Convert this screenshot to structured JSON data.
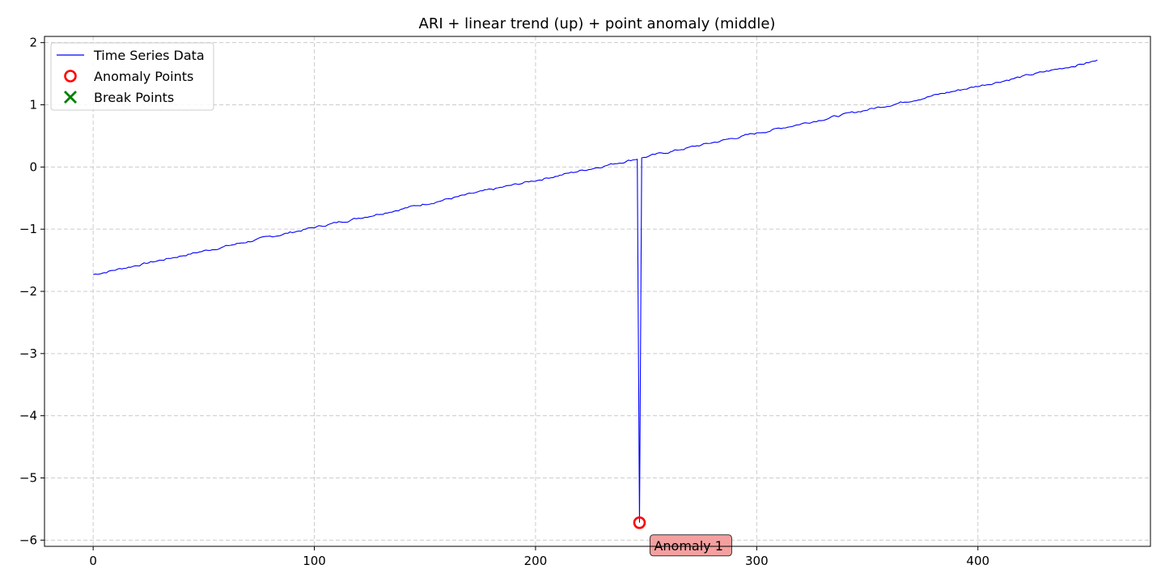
{
  "chart_data": {
    "type": "line",
    "title": "ARI + linear trend (up) + point anomaly (middle)",
    "xlabel": "",
    "ylabel": "",
    "xlim": [
      -22,
      478
    ],
    "ylim": [
      -6.1,
      2.1
    ],
    "xticks": [
      0,
      100,
      200,
      300,
      400
    ],
    "xtick_labels": [
      "0",
      "100",
      "200",
      "300",
      "400"
    ],
    "yticks": [
      2,
      1,
      0,
      -1,
      -2,
      -3,
      -4,
      -5,
      -6
    ],
    "ytick_labels": [
      "2",
      "1",
      "0",
      "−1",
      "−2",
      "−3",
      "−4",
      "−5",
      "−6"
    ],
    "grid": true,
    "legend_position": "top-left",
    "series": [
      {
        "name": "Time Series Data",
        "color": "#0000ff",
        "x_start": 0,
        "x_end": 454,
        "trend_start": -1.73,
        "trend_end": 1.71,
        "sampled_points": [
          {
            "x": 0,
            "y": -1.73
          },
          {
            "x": 100,
            "y": -0.95
          },
          {
            "x": 200,
            "y": -0.19
          },
          {
            "x": 245,
            "y": 0.15
          },
          {
            "x": 247,
            "y": -5.72
          },
          {
            "x": 249,
            "y": 0.16
          },
          {
            "x": 300,
            "y": 0.55
          },
          {
            "x": 400,
            "y": 1.3
          },
          {
            "x": 451,
            "y": 1.74
          },
          {
            "x": 454,
            "y": 1.71
          }
        ]
      }
    ],
    "anomaly_points": [
      {
        "x": 247,
        "y": -5.72,
        "label": "Anomaly 1"
      }
    ],
    "break_points": [],
    "legend": [
      {
        "label": "Time Series Data",
        "marker": "line",
        "color": "#0000ff"
      },
      {
        "label": "Anomaly Points",
        "marker": "circle",
        "color": "#ff0000"
      },
      {
        "label": "Break Points",
        "marker": "x",
        "color": "#008000"
      }
    ],
    "colors": {
      "line": "#0000ff",
      "anomaly": "#ff0000",
      "break": "#008000",
      "annotation_fill": "#f4a0a0",
      "grid": "#cccccc"
    }
  }
}
